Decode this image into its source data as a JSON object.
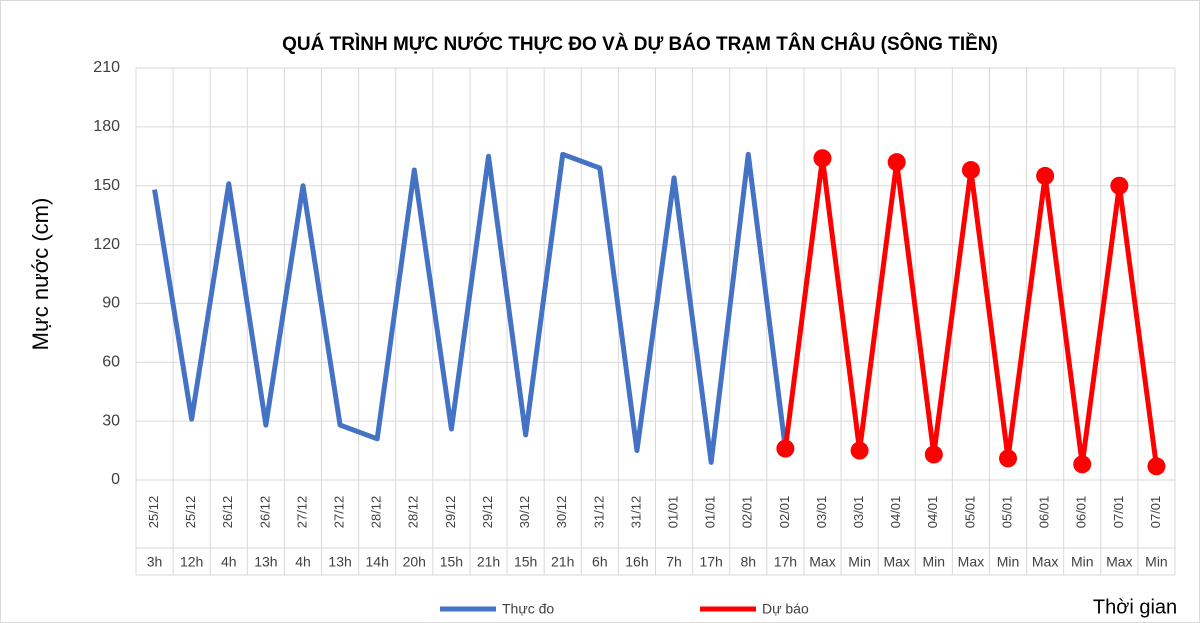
{
  "chart_data": {
    "type": "line",
    "title": "QUÁ TRÌNH MỰC NƯỚC THỰC ĐO VÀ DỰ BÁO TRẠM TÂN CHÂU (SÔNG TIỀN)",
    "y_label": "Mực nước (cm)",
    "x_label": "Thời gian",
    "categories": [
      "25/12",
      "25/12",
      "26/12",
      "26/12",
      "27/12",
      "27/12",
      "28/12",
      "28/12",
      "29/12",
      "29/12",
      "30/12",
      "30/12",
      "31/12",
      "31/12",
      "01/01",
      "01/01",
      "02/01",
      "02/01",
      "03/01",
      "03/01",
      "04/01",
      "04/01",
      "05/01",
      "05/01",
      "06/01",
      "06/01",
      "07/01",
      "07/01"
    ],
    "sub_categories": [
      "3h",
      "12h",
      "4h",
      "13h",
      "4h",
      "13h",
      "14h",
      "20h",
      "15h",
      "21h",
      "15h",
      "21h",
      "6h",
      "16h",
      "7h",
      "17h",
      "8h",
      "17h",
      "Max",
      "Min",
      "Max",
      "Min",
      "Max",
      "Min",
      "Max",
      "Min",
      "Max",
      "Min"
    ],
    "series": [
      {
        "name": "Thực đo",
        "color": "#4472c4",
        "markers": false,
        "values": [
          148,
          31,
          151,
          28,
          150,
          28,
          21,
          158,
          26,
          165,
          23,
          166,
          159,
          15,
          154,
          9,
          166,
          16,
          null,
          null,
          null,
          null,
          null,
          null,
          null,
          null,
          null,
          null
        ]
      },
      {
        "name": "Dự báo",
        "color": "#ff0000",
        "markers": true,
        "values": [
          null,
          null,
          null,
          null,
          null,
          null,
          null,
          null,
          null,
          null,
          null,
          null,
          null,
          null,
          null,
          null,
          null,
          16,
          164,
          15,
          162,
          13,
          158,
          11,
          155,
          8,
          150,
          7
        ]
      }
    ],
    "ylim": [
      0,
      210
    ],
    "yticks": [
      0,
      30,
      60,
      90,
      120,
      150,
      180,
      210
    ],
    "grid": true
  }
}
